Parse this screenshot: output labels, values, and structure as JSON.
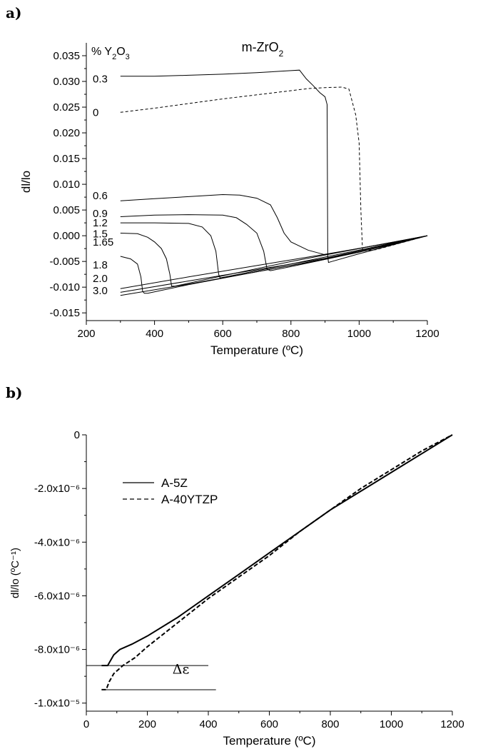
{
  "panels": [
    {
      "label": "a)"
    },
    {
      "label": "b)"
    }
  ],
  "colors": {
    "axis": "#000000",
    "curve": "#000000",
    "background": "#ffffff"
  },
  "chart_data": [
    {
      "type": "line",
      "title": "m-ZrO",
      "title_sub": "2",
      "legend_title": {
        "prefix": "% Y",
        "sub1": "2",
        "mid": "O",
        "sub2": "3"
      },
      "xlabel": "Temperature (ºC)",
      "ylabel": "dl/lo",
      "xlim": [
        200,
        1200
      ],
      "ylim": [
        -0.0165,
        0.0375
      ],
      "xticks": [
        200,
        400,
        600,
        800,
        1000,
        1200
      ],
      "xtick_labels": [
        "200",
        "400",
        "600",
        "800",
        "1000",
        "1200"
      ],
      "yticks": [
        -0.015,
        -0.01,
        -0.005,
        0.0,
        0.005,
        0.01,
        0.015,
        0.02,
        0.025,
        0.03,
        0.035
      ],
      "ytick_labels": [
        "-0.015",
        "-0.010",
        "-0.005",
        "0.000",
        "0.005",
        "0.010",
        "0.015",
        "0.020",
        "0.025",
        "0.030",
        "0.035"
      ],
      "grid": false,
      "series": [
        {
          "name": "0.3",
          "dash": "solid",
          "x": [
            300,
            400,
            500,
            600,
            700,
            800,
            825,
            845,
            865,
            885,
            900,
            906,
            908,
            910,
            920,
            1000,
            1200
          ],
          "y": [
            0.031,
            0.031,
            0.0312,
            0.0314,
            0.0317,
            0.0321,
            0.0322,
            0.0305,
            0.0292,
            0.0278,
            0.027,
            0.0255,
            -0.004,
            -0.0052,
            -0.005,
            -0.0035,
            0.0
          ]
        },
        {
          "name": "0",
          "dash": "dashed",
          "x": [
            300,
            400,
            500,
            600,
            700,
            800,
            850,
            900,
            950,
            970,
            980,
            990,
            1000,
            1005,
            1010,
            1050,
            1200
          ],
          "y": [
            0.024,
            0.0248,
            0.0257,
            0.0266,
            0.0274,
            0.0282,
            0.0286,
            0.0288,
            0.0289,
            0.0285,
            0.026,
            0.0235,
            0.018,
            0.005,
            -0.003,
            -0.0027,
            0.0
          ]
        },
        {
          "name": "0.6",
          "dash": "solid",
          "x": [
            300,
            400,
            500,
            600,
            650,
            700,
            740,
            760,
            780,
            800,
            850,
            900,
            1200
          ],
          "y": [
            0.0068,
            0.0072,
            0.0076,
            0.008,
            0.0079,
            0.0073,
            0.006,
            0.0035,
            0.0005,
            -0.0012,
            -0.0028,
            -0.0037,
            0.0
          ]
        },
        {
          "name": "0.9",
          "dash": "solid",
          "x": [
            300,
            400,
            500,
            600,
            640,
            670,
            700,
            720,
            730,
            740,
            800,
            1000,
            1200
          ],
          "y": [
            0.0037,
            0.004,
            0.0041,
            0.004,
            0.0035,
            0.0022,
            0.0005,
            -0.003,
            -0.0065,
            -0.0068,
            -0.006,
            -0.0032,
            0.0
          ]
        },
        {
          "name": "1.2",
          "dash": "solid",
          "x": [
            300,
            400,
            500,
            540,
            565,
            580,
            588,
            592,
            600,
            800,
            1000,
            1200
          ],
          "y": [
            0.0025,
            0.0025,
            0.0024,
            0.0017,
            0.0,
            -0.003,
            -0.0075,
            -0.0082,
            -0.0081,
            -0.0055,
            -0.0028,
            0.0
          ]
        },
        {
          "name": "1.5",
          "dash": "solid",
          "x": [
            300,
            350,
            380,
            400,
            420,
            435,
            445,
            450,
            460,
            600,
            800,
            1000,
            1200
          ],
          "y": [
            0.0005,
            0.0004,
            -0.0003,
            -0.0012,
            -0.0025,
            -0.0045,
            -0.0075,
            -0.0098,
            -0.0098,
            -0.0078,
            -0.005,
            -0.0025,
            0.0
          ]
        },
        {
          "name": "1.65",
          "dash": "solid",
          "x": [
            300,
            330,
            350,
            360,
            365,
            370,
            380,
            500,
            700,
            900,
            1100,
            1200
          ],
          "y": [
            -0.004,
            -0.0045,
            -0.0055,
            -0.008,
            -0.0108,
            -0.0112,
            -0.0112,
            -0.0095,
            -0.007,
            -0.0045,
            -0.0015,
            0.0
          ]
        },
        {
          "name": "1.8",
          "dash": "solid",
          "x": [
            300,
            500,
            700,
            900,
            1100,
            1200
          ],
          "y": [
            -0.0103,
            -0.008,
            -0.0058,
            -0.0036,
            -0.0013,
            0.0
          ]
        },
        {
          "name": "2.0",
          "dash": "solid",
          "x": [
            300,
            500,
            700,
            900,
            1100,
            1200
          ],
          "y": [
            -0.011,
            -0.0088,
            -0.0066,
            -0.0044,
            -0.0015,
            0.0
          ]
        },
        {
          "name": "3.0",
          "dash": "solid",
          "x": [
            300,
            500,
            700,
            900,
            1100,
            1200
          ],
          "y": [
            -0.0116,
            -0.0094,
            -0.007,
            -0.0046,
            -0.0017,
            0.0
          ]
        }
      ]
    },
    {
      "type": "line",
      "xlabel": "Temperature (ºC)",
      "ylabel": "dl/lo (ºC⁻¹)",
      "xlim": [
        0,
        1200
      ],
      "ylim": [
        -1.03e-05,
        0.0
      ],
      "xticks": [
        0,
        200,
        400,
        600,
        800,
        1000,
        1200
      ],
      "xtick_labels": [
        "0",
        "200",
        "400",
        "600",
        "800",
        "1000",
        "1200"
      ],
      "yticks": [
        0,
        -2e-06,
        -4e-06,
        -6e-06,
        -8e-06,
        -1e-05
      ],
      "ytick_labels": [
        "0",
        "-2.0x10⁻⁶",
        "-4.0x10⁻⁶",
        "-6.0x10⁻⁶",
        "-8.0x10⁻⁶",
        "-1.0x10⁻⁵"
      ],
      "grid": false,
      "legend": {
        "position": "top-left",
        "entries": [
          "A-5Z",
          "A-40YTZP"
        ]
      },
      "annotation": {
        "text": "Δε",
        "x": 310,
        "y": -8.9e-06
      },
      "reference_lines": [
        {
          "y": -8.6e-06,
          "x": [
            0,
            400
          ]
        },
        {
          "y": -9.5e-06,
          "x": [
            50,
            425
          ]
        }
      ],
      "series": [
        {
          "name": "A-5Z",
          "dash": "solid",
          "x": [
            50,
            70,
            80,
            90,
            110,
            150,
            200,
            300,
            400,
            500,
            600,
            700,
            800,
            900,
            1000,
            1100,
            1200
          ],
          "y": [
            -8.6e-06,
            -8.6e-06,
            -8.4e-06,
            -8.2e-06,
            -8e-06,
            -7.8e-06,
            -7.5e-06,
            -6.8e-06,
            -6e-06,
            -5.2e-06,
            -4.4e-06,
            -3.6e-06,
            -2.8e-06,
            -2.1e-06,
            -1.4e-06,
            -7e-07,
            0.0
          ]
        },
        {
          "name": "A-40YTZP",
          "dash": "dashed",
          "x": [
            50,
            65,
            75,
            90,
            120,
            160,
            200,
            300,
            400,
            500,
            600,
            700,
            800,
            900,
            1000,
            1100,
            1200
          ],
          "y": [
            -9.5e-06,
            -9.5e-06,
            -9.2e-06,
            -8.9e-06,
            -8.6e-06,
            -8.3e-06,
            -7.9e-06,
            -7e-06,
            -6.1e-06,
            -5.3e-06,
            -4.5e-06,
            -3.6e-06,
            -2.8e-06,
            -2e-06,
            -1.3e-06,
            -6e-07,
            0.0
          ]
        }
      ]
    }
  ]
}
